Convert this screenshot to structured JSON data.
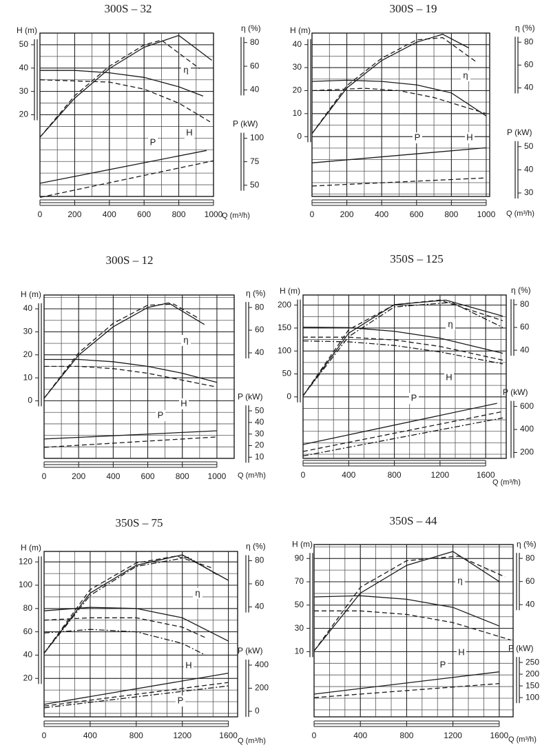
{
  "chart_data": [
    {
      "type": "line",
      "title": "300S – 32",
      "xlabel": "Q (m³/h)",
      "ylabel": "H (m)",
      "y2label": "η (%)",
      "y3label": "P (kW)",
      "color": "#1a1a1a",
      "xlim": [
        0,
        1000
      ],
      "xticks": [
        0,
        200,
        400,
        600,
        800,
        1000
      ],
      "ylim": [
        -15,
        55
      ],
      "yticks": [
        20,
        30,
        40,
        50
      ],
      "y2lim": [
        -50,
        88
      ],
      "y2ticks": [
        40,
        60,
        80
      ],
      "y3lim": [
        38,
        212
      ],
      "y3ticks": [
        50,
        75,
        100
      ],
      "annotations": [
        "H",
        "η",
        "P"
      ],
      "series": [
        {
          "axis": "y",
          "style": "solid",
          "x": [
            0,
            200,
            400,
            600,
            800,
            940
          ],
          "values": [
            39,
            39,
            38,
            36,
            32,
            28
          ]
        },
        {
          "axis": "y",
          "style": "dashed",
          "x": [
            0,
            400,
            600,
            800,
            980
          ],
          "values": [
            35,
            34,
            31,
            25,
            17
          ]
        },
        {
          "axis": "y2",
          "style": "solid",
          "x": [
            0,
            200,
            400,
            600,
            800,
            990
          ],
          "values": [
            0,
            33,
            58,
            76,
            86,
            65
          ]
        },
        {
          "axis": "y2",
          "style": "dashed",
          "x": [
            0,
            200,
            400,
            600,
            700,
            920
          ],
          "values": [
            0,
            35,
            60,
            78,
            82,
            58
          ]
        },
        {
          "axis": "y3",
          "style": "solid",
          "x": [
            0,
            960
          ],
          "values": [
            52,
            87
          ]
        },
        {
          "axis": "y3",
          "style": "dashed",
          "x": [
            0,
            1000
          ],
          "values": [
            37,
            76
          ]
        }
      ]
    },
    {
      "type": "line",
      "title": "300S – 19",
      "xlabel": "Q (m³/h)",
      "ylabel": "H (m)",
      "y2label": "η (%)",
      "y3label": "P (kW)",
      "color": "#1a1a1a",
      "xlim": [
        0,
        1020
      ],
      "xticks": [
        0,
        200,
        400,
        600,
        800,
        1000
      ],
      "ylim": [
        -26,
        45
      ],
      "yticks": [
        0,
        10,
        20,
        30,
        40
      ],
      "y2lim": [
        -55,
        88
      ],
      "y2ticks": [
        40,
        60,
        80
      ],
      "y3lim": [
        28.5,
        99
      ],
      "y3ticks": [
        30,
        40,
        50
      ],
      "annotations": [
        "H",
        "η",
        "P"
      ],
      "series": [
        {
          "axis": "y",
          "style": "solid",
          "x": [
            0,
            200,
            400,
            600,
            800,
            1000
          ],
          "values": [
            24,
            24.5,
            24,
            22.5,
            19,
            9
          ]
        },
        {
          "axis": "y",
          "style": "dashed",
          "x": [
            0,
            300,
            500,
            700,
            1000
          ],
          "values": [
            20,
            21,
            20,
            17,
            10
          ]
        },
        {
          "axis": "y2",
          "style": "solid",
          "x": [
            0,
            200,
            400,
            600,
            750,
            900
          ],
          "values": [
            0,
            40,
            64,
            80,
            87,
            75
          ]
        },
        {
          "axis": "y2",
          "style": "dashed",
          "x": [
            0,
            200,
            400,
            600,
            750,
            950
          ],
          "values": [
            0,
            42,
            66,
            82,
            84,
            62
          ]
        },
        {
          "axis": "y3",
          "style": "solid",
          "x": [
            0,
            1000
          ],
          "values": [
            43,
            49.5
          ]
        },
        {
          "axis": "y3",
          "style": "dashed",
          "x": [
            0,
            1000
          ],
          "values": [
            33,
            36.5
          ]
        }
      ]
    },
    {
      "type": "line",
      "title": "300S – 12",
      "xlabel": "Q (m³/h)",
      "ylabel": "H (m)",
      "y2label": "η (%)",
      "y3label": "P (kW)",
      "color": "#1a1a1a",
      "xlim": [
        0,
        1100
      ],
      "xticks": [
        0,
        200,
        400,
        600,
        800,
        1000
      ],
      "ylim": [
        -25,
        46
      ],
      "yticks": [
        0,
        10,
        20,
        30,
        40
      ],
      "y2lim": [
        -53,
        91
      ],
      "y2ticks": [
        40,
        60,
        80
      ],
      "y3lim": [
        9,
        150
      ],
      "y3ticks": [
        10,
        20,
        30,
        40,
        50
      ],
      "annotations": [
        "H",
        "η",
        "P"
      ],
      "series": [
        {
          "axis": "y",
          "style": "solid",
          "x": [
            0,
            200,
            400,
            600,
            800,
            1000
          ],
          "values": [
            18,
            18,
            17,
            15,
            12,
            8
          ]
        },
        {
          "axis": "y",
          "style": "dashed",
          "x": [
            0,
            200,
            400,
            600,
            800,
            1000
          ],
          "values": [
            15,
            15,
            14,
            12,
            9,
            6
          ]
        },
        {
          "axis": "y2",
          "style": "solid",
          "x": [
            0,
            200,
            400,
            600,
            720,
            928
          ],
          "values": [
            0,
            38,
            63,
            80,
            84,
            65
          ]
        },
        {
          "axis": "y2",
          "style": "dashed",
          "x": [
            0,
            200,
            400,
            600,
            750,
            900
          ],
          "values": [
            0,
            40,
            66,
            82,
            83,
            70
          ]
        },
        {
          "axis": "y3",
          "style": "solid",
          "x": [
            0,
            1000
          ],
          "values": [
            25.7,
            32.8
          ]
        },
        {
          "axis": "y3",
          "style": "dashed",
          "x": [
            0,
            1000
          ],
          "values": [
            18.5,
            27.5
          ]
        }
      ]
    },
    {
      "type": "line",
      "title": "350S – 125",
      "xlabel": "Q (m³/h)",
      "ylabel": "H (m)",
      "y2label": "η (%)",
      "y3label": "P (kW)",
      "color": "#1a1a1a",
      "xlim": [
        0,
        1780
      ],
      "xticks": [
        0,
        400,
        800,
        1200,
        1600
      ],
      "ylim": [
        -134,
        222
      ],
      "yticks": [
        0,
        50,
        100,
        150,
        200
      ],
      "y2lim": [
        -55,
        88.5
      ],
      "y2ticks": [
        40,
        60,
        80
      ],
      "y3lim": [
        149,
        1567
      ],
      "y3ticks": [
        200,
        400,
        600
      ],
      "annotations": [
        "H",
        "η",
        "P"
      ],
      "series": [
        {
          "axis": "y",
          "style": "solid",
          "x": [
            0,
            400,
            800,
            1200,
            1750
          ],
          "values": [
            152,
            151,
            143,
            128,
            95
          ]
        },
        {
          "axis": "y",
          "style": "dashed",
          "x": [
            0,
            400,
            800,
            1200,
            1750
          ],
          "values": [
            130,
            130,
            124,
            110,
            80
          ]
        },
        {
          "axis": "y",
          "style": "dashdot",
          "x": [
            0,
            400,
            800,
            1200,
            1750
          ],
          "values": [
            122,
            120,
            112,
            98,
            72
          ]
        },
        {
          "axis": "y2",
          "style": "solid",
          "x": [
            0,
            400,
            800,
            1250,
            1750
          ],
          "values": [
            0,
            55,
            80,
            84,
            70
          ]
        },
        {
          "axis": "y2",
          "style": "dashed",
          "x": [
            0,
            400,
            800,
            1200,
            1750
          ],
          "values": [
            0,
            58,
            80,
            84,
            66
          ]
        },
        {
          "axis": "y2",
          "style": "dashdot",
          "x": [
            0,
            400,
            800,
            1300,
            1750
          ],
          "values": [
            0,
            52,
            78,
            82,
            60
          ]
        },
        {
          "axis": "y3",
          "style": "solid",
          "x": [
            0,
            1700
          ],
          "values": [
            269,
            627
          ]
        },
        {
          "axis": "y3",
          "style": "dashed",
          "x": [
            0,
            1750
          ],
          "values": [
            209,
            555
          ]
        },
        {
          "axis": "y3",
          "style": "dashdot",
          "x": [
            0,
            1750
          ],
          "values": [
            170,
            500
          ]
        }
      ]
    },
    {
      "type": "line",
      "title": "350S – 75",
      "xlabel": "Q (m³/h)",
      "ylabel": "H (m)",
      "y2label": "η (%)",
      "y3label": "P (kW)",
      "color": "#1a1a1a",
      "xlim": [
        0,
        1680
      ],
      "xticks": [
        0,
        400,
        800,
        1200,
        1600
      ],
      "ylim": [
        -13,
        129
      ],
      "yticks": [
        20,
        40,
        60,
        80,
        100,
        120
      ],
      "y2lim": [
        -55,
        88
      ],
      "y2ticks": [
        40,
        60,
        80
      ],
      "y3lim": [
        -48,
        1384
      ],
      "y3ticks": [
        0,
        200,
        400
      ],
      "annotations": [
        "H",
        "η",
        "P"
      ],
      "series": [
        {
          "axis": "y",
          "style": "solid",
          "x": [
            0,
            400,
            800,
            1200,
            1600
          ],
          "values": [
            78,
            81,
            80,
            72,
            52
          ]
        },
        {
          "axis": "y",
          "style": "dashed",
          "x": [
            0,
            400,
            800,
            1200,
            1400
          ],
          "values": [
            70,
            72,
            72,
            64,
            55
          ]
        },
        {
          "axis": "y",
          "style": "dashdot",
          "x": [
            0,
            400,
            800,
            1200,
            1400
          ],
          "values": [
            59,
            62,
            60,
            50,
            40
          ]
        },
        {
          "axis": "y2",
          "style": "solid",
          "x": [
            0,
            400,
            800,
            1200,
            1600
          ],
          "values": [
            0,
            52,
            76,
            85,
            63
          ]
        },
        {
          "axis": "y2",
          "style": "dashed",
          "x": [
            0,
            400,
            800,
            1150,
            1450
          ],
          "values": [
            0,
            55,
            78,
            84,
            74
          ]
        },
        {
          "axis": "y2",
          "style": "dashdot",
          "x": [
            0,
            400,
            800,
            1250,
            1500
          ],
          "values": [
            0,
            50,
            75,
            83,
            68
          ]
        },
        {
          "axis": "y3",
          "style": "solid",
          "x": [
            0,
            1600
          ],
          "values": [
            60,
            330
          ]
        },
        {
          "axis": "y3",
          "style": "dashed",
          "x": [
            0,
            1600
          ],
          "values": [
            45,
            250
          ]
        },
        {
          "axis": "y3",
          "style": "dashdot",
          "x": [
            0,
            1600
          ],
          "values": [
            30,
            220
          ]
        }
      ]
    },
    {
      "type": "line",
      "title": "350S – 44",
      "xlabel": "Q (m³/h)",
      "ylabel": "H (m)",
      "y2label": "η (%)",
      "y3label": "P (kW)",
      "color": "#1a1a1a",
      "xlim": [
        0,
        1720
      ],
      "xticks": [
        0,
        400,
        800,
        1200,
        1600
      ],
      "ylim": [
        -46,
        102
      ],
      "yticks": [
        10,
        30,
        50,
        70,
        90
      ],
      "y2lim": [
        -57,
        92
      ],
      "y2ticks": [
        40,
        60,
        80
      ],
      "y3lim": [
        18,
        753
      ],
      "y3ticks": [
        100,
        150,
        200,
        250
      ],
      "annotations": [
        "H",
        "η",
        "P"
      ],
      "series": [
        {
          "axis": "y",
          "style": "solid",
          "x": [
            0,
            400,
            800,
            1200,
            1600
          ],
          "values": [
            57,
            58,
            55,
            48,
            32
          ]
        },
        {
          "axis": "y",
          "style": "dashed",
          "x": [
            0,
            400,
            800,
            1200,
            1700
          ],
          "values": [
            45,
            45,
            42,
            35,
            20
          ]
        },
        {
          "axis": "y2",
          "style": "solid",
          "x": [
            0,
            400,
            800,
            1200,
            1600
          ],
          "values": [
            0,
            50,
            74,
            86,
            60
          ]
        },
        {
          "axis": "y2",
          "style": "dashed",
          "x": [
            0,
            400,
            800,
            1250,
            1650
          ],
          "values": [
            0,
            55,
            78,
            82,
            64
          ]
        },
        {
          "axis": "y3",
          "style": "solid",
          "x": [
            0,
            1600
          ],
          "values": [
            115,
            210
          ]
        },
        {
          "axis": "y3",
          "style": "dashed",
          "x": [
            0,
            1600
          ],
          "values": [
            100,
            160
          ]
        }
      ]
    }
  ]
}
